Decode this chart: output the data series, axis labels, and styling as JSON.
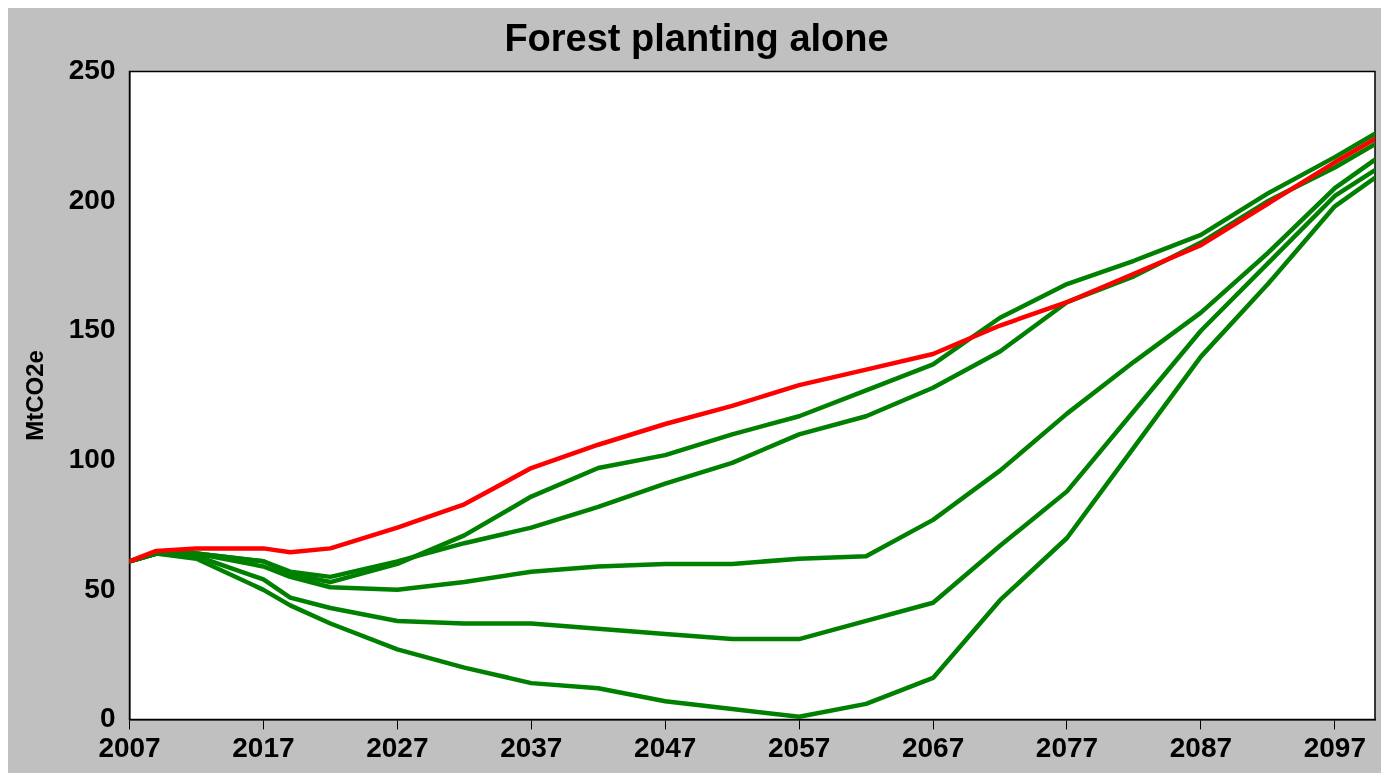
{
  "chart_data": {
    "type": "line",
    "title": "Forest planting alone",
    "ylabel": "MtCO2e",
    "x": [
      2007,
      2009,
      2012,
      2017,
      2019,
      2022,
      2027,
      2032,
      2037,
      2042,
      2047,
      2052,
      2057,
      2062,
      2067,
      2072,
      2077,
      2082,
      2087,
      2092,
      2097,
      2100
    ],
    "xlim": [
      2007,
      2100
    ],
    "xticks": [
      2007,
      2017,
      2027,
      2037,
      2047,
      2057,
      2067,
      2077,
      2087,
      2097
    ],
    "ylim": [
      0,
      250
    ],
    "yticks": [
      0,
      50,
      100,
      150,
      200,
      250
    ],
    "grid": false,
    "legend": false,
    "marker": "none",
    "line_style": "solid",
    "series": [
      {
        "color": "#ff0000",
        "values": [
          61,
          65,
          66,
          66,
          64.5,
          66,
          74,
          83,
          97,
          106,
          114,
          121,
          129,
          135,
          141,
          152,
          161,
          172,
          183,
          199,
          215,
          224
        ]
      },
      {
        "color": "#008000",
        "values": [
          61,
          64,
          64,
          61,
          56,
          53,
          60,
          71,
          86,
          97,
          102,
          110,
          117,
          127,
          137,
          155,
          168,
          177,
          187,
          203,
          217,
          226
        ]
      },
      {
        "color": "#008000",
        "values": [
          61,
          64,
          64,
          61,
          57,
          55,
          61,
          68,
          74,
          82,
          91,
          99,
          110,
          117,
          128,
          142,
          161,
          171,
          184,
          200,
          213,
          222
        ]
      },
      {
        "color": "#008000",
        "values": [
          61,
          64,
          64,
          59,
          55,
          51,
          50,
          53,
          57,
          59,
          60,
          60,
          62,
          63,
          77,
          96,
          118,
          138,
          157,
          180,
          205,
          216
        ]
      },
      {
        "color": "#008000",
        "values": [
          61,
          64,
          63,
          54,
          47,
          43,
          38,
          37,
          37,
          35,
          33,
          31,
          31,
          38,
          45,
          67,
          88,
          119,
          150,
          176,
          202,
          212
        ]
      },
      {
        "color": "#008000",
        "values": [
          61,
          64,
          62,
          50,
          44,
          37,
          27,
          20,
          14,
          12,
          7,
          4,
          1,
          6,
          16,
          46,
          70,
          105,
          140,
          168,
          198,
          209
        ]
      }
    ]
  }
}
